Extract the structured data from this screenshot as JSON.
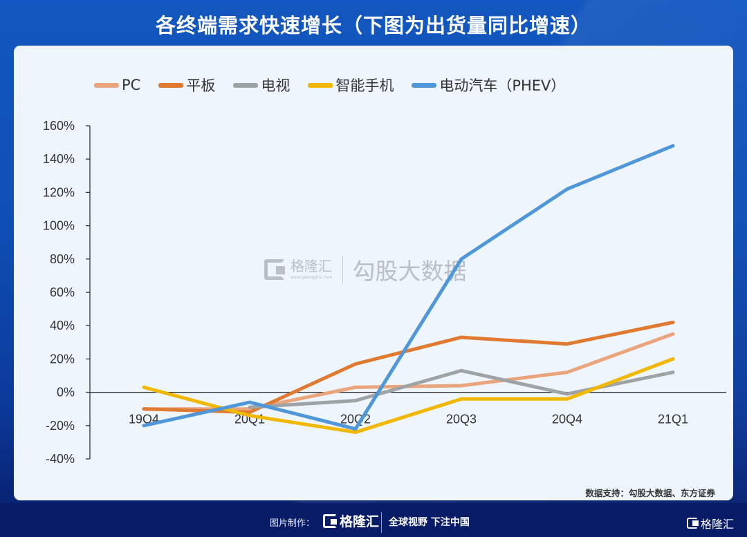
{
  "title": "各终端需求快速增长（下图为出货量同比增速）",
  "source_note": "数据支持：勾股大数据、东方证券",
  "watermark": {
    "brand": "格隆汇",
    "url": "www.gelonghui.com",
    "text": "勾股大数据"
  },
  "footer": {
    "made_by_label": "图片制作：",
    "brand": "格隆汇",
    "slogan": "全球视野 下注中国",
    "corner_brand": "格隆汇"
  },
  "chart_data": {
    "type": "line",
    "title": "各终端需求快速增长（下图为出货量同比增速）",
    "xlabel": "",
    "ylabel": "",
    "categories": [
      "19Q4",
      "20Q1",
      "20Q2",
      "20Q3",
      "20Q4",
      "21Q1"
    ],
    "y_ticks": [
      "160%",
      "140%",
      "120%",
      "100%",
      "80%",
      "60%",
      "40%",
      "20%",
      "0%",
      "-20%",
      "-40%"
    ],
    "y_tick_values": [
      160,
      140,
      120,
      100,
      80,
      60,
      40,
      20,
      0,
      -20,
      -40
    ],
    "ylim": [
      -40,
      160
    ],
    "grid": false,
    "legend_position": "top",
    "series": [
      {
        "name": "PC",
        "color": "#eaa57c",
        "values": [
          -10,
          -10,
          3,
          4,
          12,
          35
        ]
      },
      {
        "name": "平板",
        "color": "#e07a30",
        "values": [
          -10,
          -12,
          17,
          33,
          29,
          42
        ]
      },
      {
        "name": "电视",
        "color": "#a0a3a6",
        "values": [
          null,
          -9,
          -5,
          13,
          -1,
          12
        ]
      },
      {
        "name": "智能手机",
        "color": "#f0b800",
        "values": [
          3,
          -14,
          -24,
          -4,
          -4,
          20
        ]
      },
      {
        "name": "电动汽车（PHEV）",
        "color": "#4f97d8",
        "values": [
          -20,
          -6,
          -22,
          80,
          122,
          148
        ]
      }
    ]
  }
}
